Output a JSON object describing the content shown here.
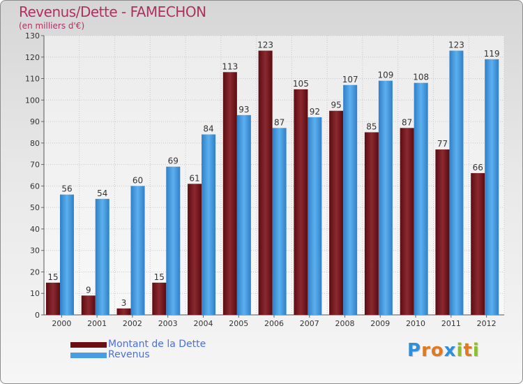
{
  "title": "Revenus/Dette - FAMECHON",
  "subtitle": "(en milliers d'€)",
  "legend": {
    "items": [
      {
        "label": "Montant de la Dette",
        "color": "#7a1a20"
      },
      {
        "label": "Revenus",
        "color": "#4a9de0"
      }
    ]
  },
  "logo": {
    "text": "Proxiti",
    "letters": [
      {
        "char": "P",
        "color": "#2f8fd8"
      },
      {
        "char": "r",
        "color": "#e07a20"
      },
      {
        "char": "o",
        "color": "#e07a20"
      },
      {
        "char": "x",
        "color": "#2f8fd8"
      },
      {
        "char": "i",
        "color": "#8cbf2a"
      },
      {
        "char": "t",
        "color": "#e07a20"
      },
      {
        "char": "i",
        "color": "#8cbf2a"
      }
    ]
  },
  "chart_data": {
    "type": "bar",
    "categories": [
      "2000",
      "2001",
      "2002",
      "2003",
      "2004",
      "2005",
      "2006",
      "2007",
      "2008",
      "2009",
      "2010",
      "2011",
      "2012"
    ],
    "series": [
      {
        "name": "Montant de la Dette",
        "color": "#7a1a20",
        "values": [
          15,
          9,
          3,
          15,
          61,
          113,
          123,
          105,
          95,
          85,
          87,
          77,
          66
        ]
      },
      {
        "name": "Revenus",
        "color": "#4a9de0",
        "values": [
          56,
          54,
          60,
          69,
          84,
          93,
          87,
          92,
          107,
          109,
          108,
          123,
          119
        ]
      }
    ],
    "ylim": [
      0,
      130
    ],
    "yticks": [
      0,
      10,
      20,
      30,
      40,
      50,
      60,
      70,
      80,
      90,
      100,
      110,
      120,
      130
    ],
    "grid": true,
    "legend_position": "bottom-left",
    "data_labels": true
  }
}
